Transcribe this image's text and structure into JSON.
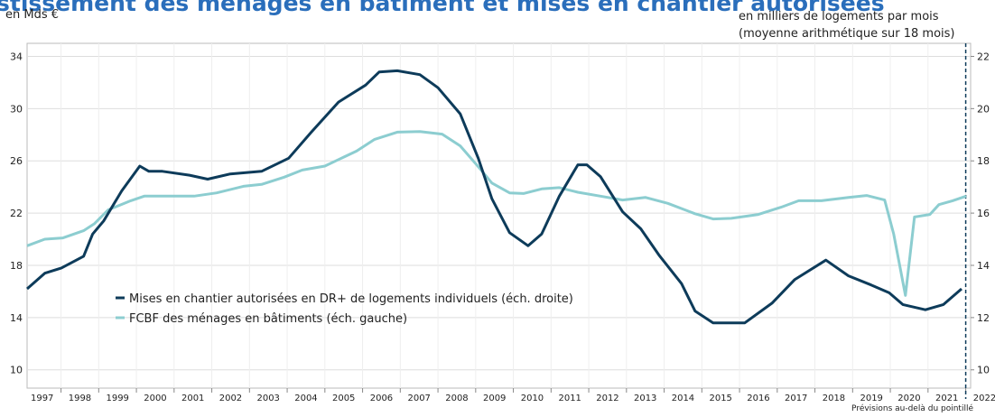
{
  "chart_data": {
    "type": "line",
    "title": "stissement des ménages en bâtiment et mises en chantier autorisées",
    "y_label": "en Mds €",
    "y2_label": [
      "en milliers de logements par mois",
      "(moyenne arithmétique sur 18 mois)"
    ],
    "note": "Prévisions au-delà du pointillé",
    "forecast_start": 2022,
    "xlim": [
      1997.1,
      2022.13
    ],
    "xticks": [
      1997,
      1998,
      1999,
      2000,
      2001,
      2002,
      2003,
      2004,
      2005,
      2006,
      2007,
      2008,
      2009,
      2010,
      2011,
      2012,
      2013,
      2014,
      2015,
      2016,
      2017,
      2018,
      2019,
      2020,
      2021,
      2022
    ],
    "ylim": [
      8.6,
      35
    ],
    "yticks": [
      10,
      14,
      18,
      22,
      26,
      30,
      34
    ],
    "y2lim": [
      9.3,
      22.5
    ],
    "y2ticks": [
      10,
      12,
      14,
      16,
      18,
      20,
      22
    ],
    "grid": true,
    "series": [
      {
        "name": "Mises en chantier autorisées en DR+ de logements individuels (éch. droite)",
        "color": "#0d3b5a",
        "axis": "y2",
        "x": [
          1997.1,
          1997.57,
          1998.01,
          1998.6,
          1998.84,
          1999.13,
          1999.61,
          2000.09,
          2000.33,
          2000.69,
          2001.41,
          2001.89,
          2002.49,
          2003.32,
          2004.04,
          2004.64,
          2005.36,
          2006.08,
          2006.44,
          2006.92,
          2007.52,
          2008.0,
          2008.59,
          2009.07,
          2009.43,
          2009.9,
          2010.39,
          2010.75,
          2011.22,
          2011.71,
          2011.95,
          2012.31,
          2012.9,
          2013.38,
          2013.86,
          2014.46,
          2014.82,
          2015.3,
          2016.14,
          2016.86,
          2017.46,
          2018.29,
          2018.89,
          2019.49,
          2019.97,
          2020.33,
          2020.93,
          2021.41,
          2021.89
        ],
        "values": [
          13.1,
          13.7,
          13.9,
          14.35,
          15.2,
          15.7,
          16.85,
          17.8,
          17.6,
          17.6,
          17.45,
          17.3,
          17.5,
          17.6,
          18.1,
          19.1,
          20.25,
          20.9,
          21.4,
          21.45,
          21.3,
          20.8,
          19.8,
          18.1,
          16.55,
          15.25,
          14.75,
          15.2,
          16.65,
          17.85,
          17.85,
          17.4,
          16.05,
          15.4,
          14.4,
          13.3,
          12.25,
          11.8,
          11.8,
          12.55,
          13.45,
          14.2,
          13.6,
          13.25,
          12.95,
          12.5,
          12.3,
          12.5,
          13.1
        ]
      },
      {
        "name": "FCBF des ménages en bâtiments (éch. gauche)",
        "color": "#8ccdd0",
        "axis": "y",
        "x": [
          1997.1,
          1997.57,
          1998.05,
          1998.6,
          1998.89,
          1999.25,
          1999.85,
          2000.21,
          2000.93,
          2001.53,
          2002.13,
          2002.84,
          2003.32,
          2003.92,
          2004.4,
          2005.0,
          2005.36,
          2005.84,
          2006.32,
          2006.92,
          2007.52,
          2008.11,
          2008.59,
          2009.07,
          2009.43,
          2009.9,
          2010.27,
          2010.75,
          2011.22,
          2011.71,
          2012.31,
          2012.9,
          2013.5,
          2014.1,
          2014.82,
          2015.3,
          2015.78,
          2016.5,
          2017.1,
          2017.57,
          2018.17,
          2018.89,
          2019.37,
          2019.85,
          2020.09,
          2020.4,
          2020.64,
          2021.05,
          2021.29,
          2021.65,
          2022.01
        ],
        "values": [
          19.5,
          20.0,
          20.1,
          20.65,
          21.2,
          22.25,
          22.95,
          23.3,
          23.3,
          23.3,
          23.55,
          24.05,
          24.2,
          24.75,
          25.3,
          25.6,
          26.1,
          26.75,
          27.65,
          28.2,
          28.25,
          28.05,
          27.15,
          25.55,
          24.3,
          23.55,
          23.5,
          23.85,
          23.95,
          23.6,
          23.3,
          23.0,
          23.2,
          22.75,
          21.95,
          21.55,
          21.6,
          21.9,
          22.45,
          22.95,
          22.95,
          23.2,
          23.35,
          23.0,
          20.4,
          15.7,
          21.7,
          21.9,
          22.65,
          22.95,
          23.3
        ]
      }
    ]
  }
}
